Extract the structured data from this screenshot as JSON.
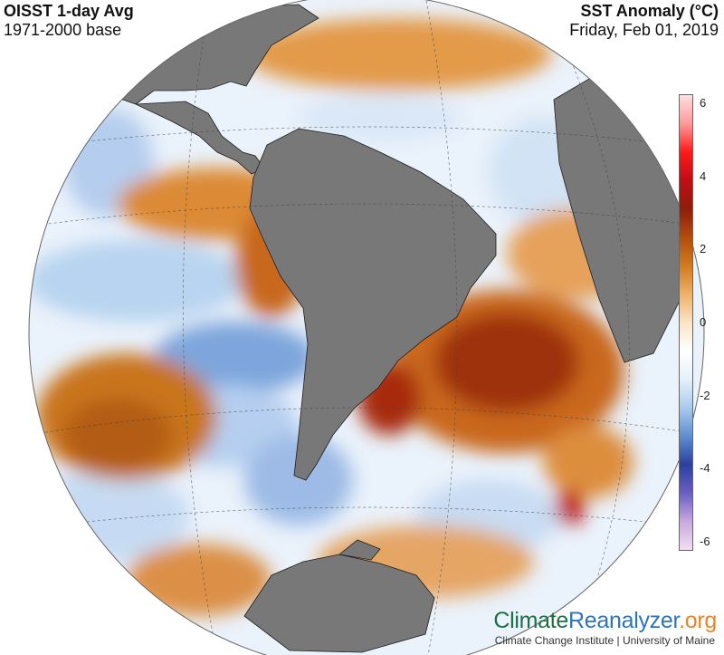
{
  "header": {
    "title_left": "OISST 1-day Avg",
    "subtitle_left": "1971-2000 base",
    "title_right": "SST Anomaly (°C)",
    "subtitle_right": "Friday, Feb 01, 2019"
  },
  "colorbar": {
    "ticks": [
      "6",
      "4",
      "2",
      "0",
      "-2",
      "-4",
      "-6"
    ],
    "min": -6,
    "max": 6,
    "colors": [
      "#f5def2",
      "#c7a8de",
      "#6a5fc3",
      "#2b3fa0",
      "#5f8fd1",
      "#a9cbed",
      "#e6f1fb",
      "#ffffff",
      "#fbe5c4",
      "#efb066",
      "#d17a1f",
      "#b34c0c",
      "#8e1d09",
      "#c00d16",
      "#ff1a1a",
      "#ff9a9a",
      "#ffe0e0"
    ]
  },
  "map": {
    "land_color": "#787878",
    "warm_color": "#d9802c",
    "hot_color": "#a2340c",
    "cool_color": "#a9cbed",
    "cold_color": "#4f7fcc"
  },
  "branding": {
    "part1": "Climate",
    "part2": "Reanalyzer",
    "part3": ".org",
    "sub": "Climate Change Institute | University of Maine"
  }
}
